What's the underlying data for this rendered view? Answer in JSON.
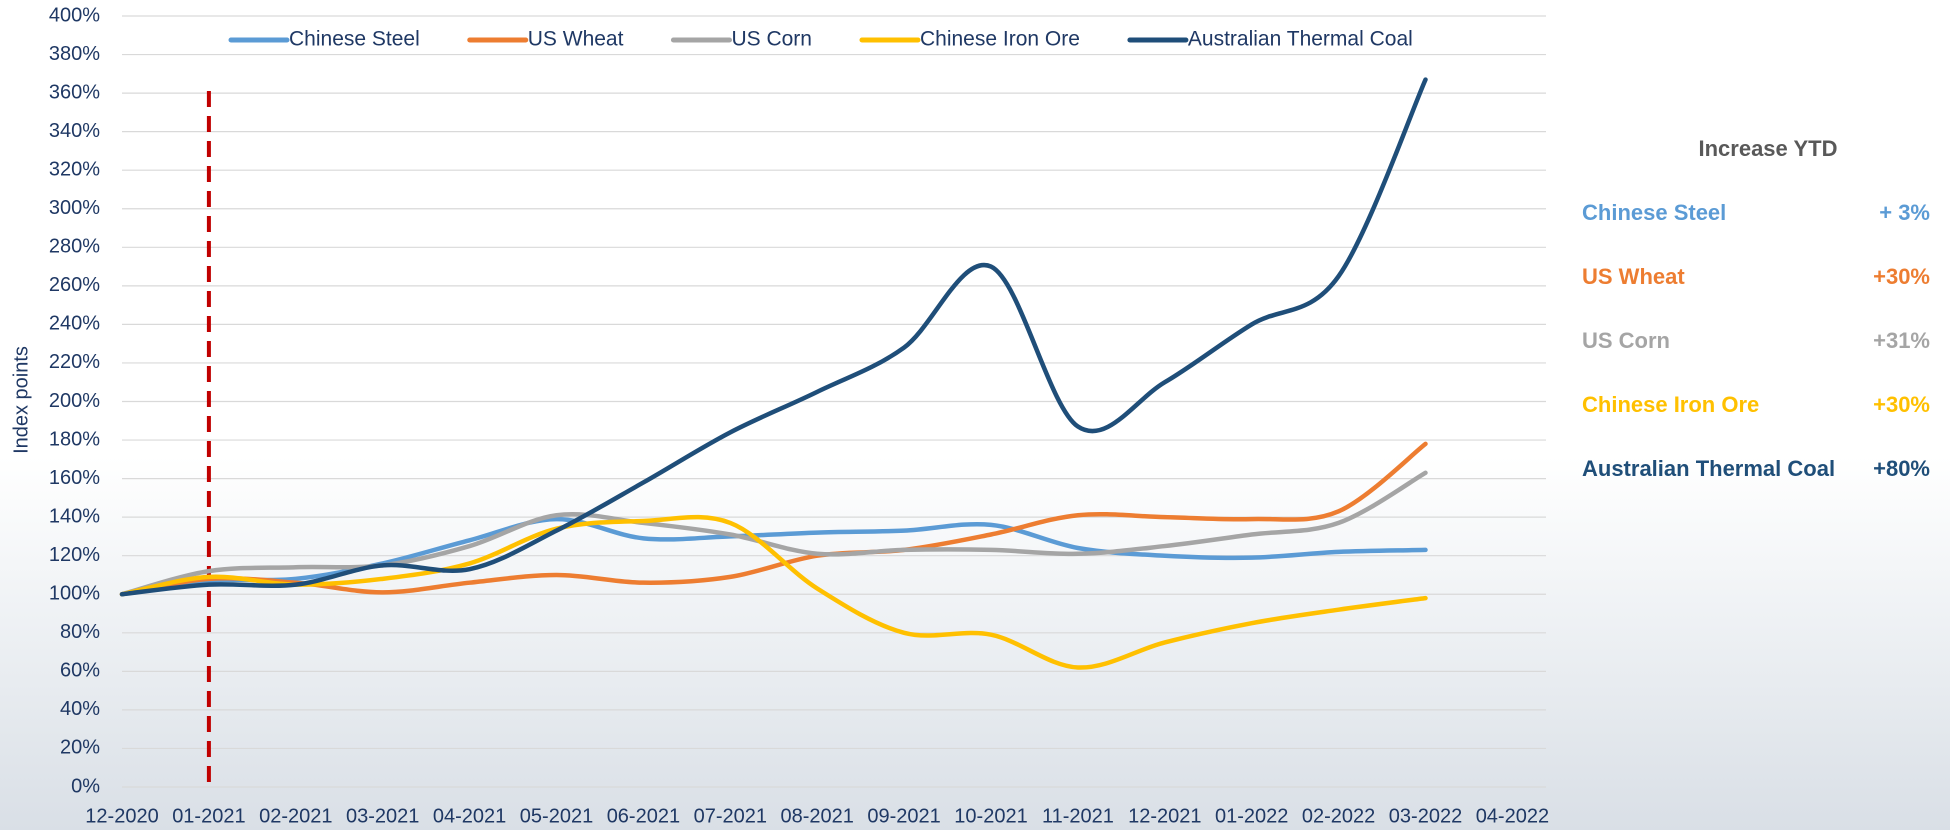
{
  "chart_data": {
    "type": "line",
    "y_label": "Index points",
    "categories": [
      "12-2020",
      "01-2021",
      "02-2021",
      "03-2021",
      "04-2021",
      "05-2021",
      "06-2021",
      "07-2021",
      "08-2021",
      "09-2021",
      "10-2021",
      "11-2021",
      "12-2021",
      "01-2022",
      "02-2022",
      "03-2022",
      "04-2022"
    ],
    "series": [
      {
        "name": "Chinese Steel",
        "color": "#5b9bd5",
        "values": [
          100,
          107,
          108,
          116,
          128,
          139,
          129,
          130,
          132,
          133,
          136,
          124,
          120,
          119,
          122,
          123,
          null
        ]
      },
      {
        "name": "US Wheat",
        "color": "#ed7d31",
        "values": [
          100,
          108,
          106,
          101,
          106,
          110,
          106,
          109,
          120,
          123,
          131,
          141,
          140,
          139,
          143,
          178,
          null
        ]
      },
      {
        "name": "US Corn",
        "color": "#a5a5a5",
        "values": [
          100,
          112,
          114,
          115,
          125,
          141,
          137,
          131,
          121,
          123,
          123,
          121,
          125,
          131,
          137,
          163,
          null
        ]
      },
      {
        "name": "Chinese Iron Ore",
        "color": "#ffc000",
        "values": [
          100,
          109,
          105,
          108,
          116,
          134,
          138,
          137,
          103,
          80,
          79,
          62,
          75,
          85,
          92,
          98,
          null
        ]
      },
      {
        "name": "Australian Thermal Coal",
        "color": "#1f4e79",
        "values": [
          100,
          105,
          105,
          115,
          113,
          133,
          158,
          184,
          205,
          228,
          270,
          187,
          210,
          240,
          265,
          367,
          null
        ]
      }
    ],
    "ylim": [
      0,
      400
    ],
    "yticks": [
      {
        "value": 0,
        "label": "0%"
      },
      {
        "value": 20,
        "label": "20%"
      },
      {
        "value": 40,
        "label": "40%"
      },
      {
        "value": 60,
        "label": "60%"
      },
      {
        "value": 80,
        "label": "80%"
      },
      {
        "value": 100,
        "label": "100%"
      },
      {
        "value": 120,
        "label": "120%"
      },
      {
        "value": 140,
        "label": "140%"
      },
      {
        "value": 160,
        "label": "160%"
      },
      {
        "value": 180,
        "label": "180%"
      },
      {
        "value": 200,
        "label": "200%"
      },
      {
        "value": 220,
        "label": "220%"
      },
      {
        "value": 240,
        "label": "240%"
      },
      {
        "value": 260,
        "label": "260%"
      },
      {
        "value": 280,
        "label": "280%"
      },
      {
        "value": 300,
        "label": "300%"
      },
      {
        "value": 320,
        "label": "320%"
      },
      {
        "value": 340,
        "label": "340%"
      },
      {
        "value": 360,
        "label": "360%"
      },
      {
        "value": 380,
        "label": "380%"
      },
      {
        "value": 400,
        "label": "400%"
      }
    ],
    "grid": true,
    "legend": "top",
    "reference_line": {
      "category": "01-2021",
      "color": "#c00000"
    },
    "ytd_title": "Increase YTD",
    "ytd_labels": [
      "+ 3%",
      "+30%",
      "+31%",
      "+30%",
      "+80%"
    ]
  }
}
